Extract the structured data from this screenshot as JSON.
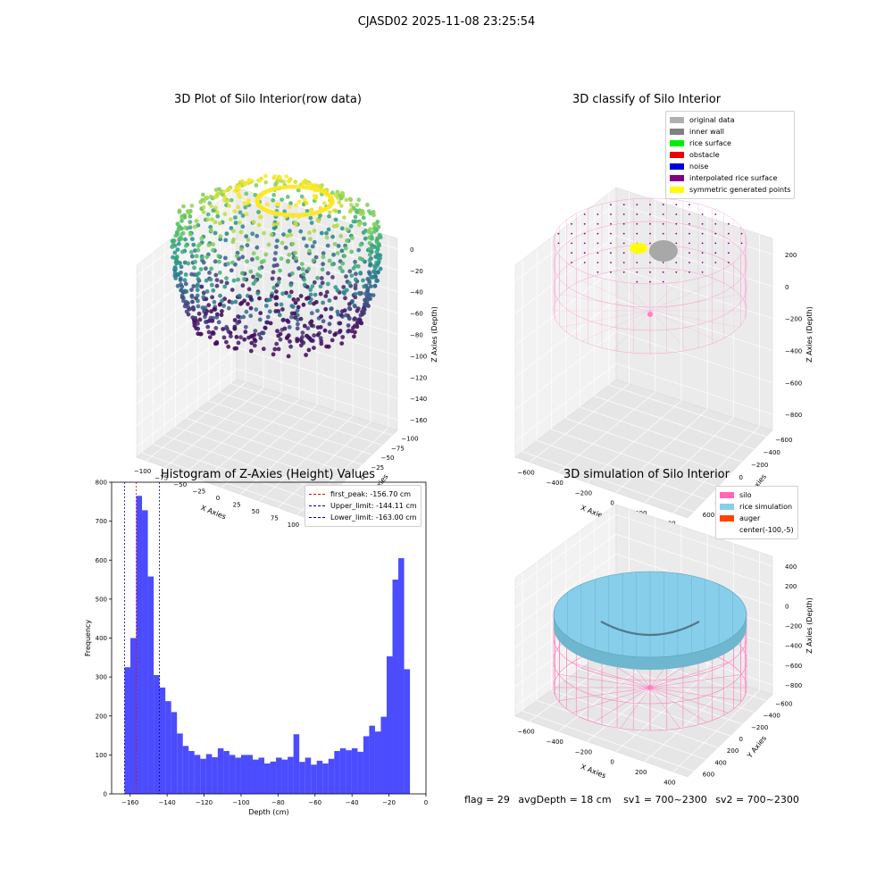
{
  "suptitle": "CJASD02 2025-11-08 23:25:54",
  "panels": {
    "raw": {
      "title": "3D Plot of Silo Interior(row data)",
      "xlabel": "X Axies",
      "ylabel": "Y Axies",
      "zlabel": "Z Axies (Depth)",
      "xticks": [
        "−100",
        "−75",
        "−50",
        "−25",
        "0",
        "25",
        "50",
        "75",
        "100"
      ],
      "yticks": [
        "100",
        "75",
        "50",
        "25",
        "0",
        "−25",
        "−50",
        "−75",
        "−100"
      ],
      "zticks": [
        "0",
        "−20",
        "−40",
        "−60",
        "−80",
        "−100",
        "−120",
        "−140",
        "−160"
      ]
    },
    "classify": {
      "title": "3D classify of Silo Interior",
      "xlabel": "X Axies",
      "ylabel": "Y Axies",
      "zlabel": "Z Axies (Depth)",
      "xticks": [
        "−600",
        "−400",
        "−200",
        "0",
        "200",
        "400"
      ],
      "yticks": [
        "600",
        "400",
        "200",
        "0",
        "−200",
        "−400",
        "−600"
      ],
      "zticks": [
        "200",
        "0",
        "−200",
        "−400",
        "−600",
        "−800"
      ],
      "legend": [
        {
          "label": "original data",
          "color": "#b0b0b0"
        },
        {
          "label": "inner wall",
          "color": "#808080"
        },
        {
          "label": "rice surface",
          "color": "#00ee00"
        },
        {
          "label": "obstacle",
          "color": "#ee0000"
        },
        {
          "label": "noise",
          "color": "#0000dd"
        },
        {
          "label": "interpolated rice surface",
          "color": "#800080"
        },
        {
          "label": "symmetric generated points",
          "color": "#ffff00"
        }
      ]
    },
    "simulation": {
      "title": "3D simulation of Silo Interior",
      "xlabel": "X Axies",
      "ylabel": "Y Axies",
      "zlabel": "Z Axies (Depth)",
      "xticks": [
        "−600",
        "−400",
        "−200",
        "0",
        "200",
        "400"
      ],
      "yticks": [
        "600",
        "400",
        "200",
        "0",
        "−200",
        "−400",
        "−600"
      ],
      "zticks": [
        "400",
        "200",
        "0",
        "−200",
        "−400",
        "−600",
        "−800"
      ],
      "legend": [
        {
          "label": "silo",
          "color": "#ff69b4"
        },
        {
          "label": "rice simulation",
          "color": "#87ceeb"
        },
        {
          "label": "auger",
          "color": "#ff4500"
        },
        {
          "label": "center(-100,-5)",
          "color": ""
        }
      ]
    }
  },
  "chart_data": {
    "type": "bar",
    "title": "Histogram of Z-Axies (Height) Values",
    "xlabel": "Depth (cm)",
    "ylabel": "Frequency",
    "xlim": [
      -170,
      0
    ],
    "ylim": [
      0,
      800
    ],
    "xticks": [
      "−160",
      "−140",
      "−120",
      "−100",
      "−80",
      "−60",
      "−40",
      "−20",
      "0"
    ],
    "yticks": [
      "0",
      "100",
      "200",
      "300",
      "400",
      "500",
      "600",
      "700",
      "800"
    ],
    "bin_start": -163.0,
    "bin_width": 3.15,
    "values": [
      325,
      400,
      765,
      728,
      558,
      305,
      273,
      238,
      210,
      155,
      123,
      110,
      100,
      90,
      102,
      94,
      117,
      110,
      100,
      93,
      100,
      100,
      88,
      93,
      78,
      83,
      93,
      88,
      95,
      153,
      82,
      93,
      75,
      85,
      78,
      90,
      110,
      117,
      112,
      117,
      108,
      148,
      175,
      160,
      198,
      353,
      550,
      605,
      320
    ],
    "bar_color": "#0000ff",
    "vlines": [
      {
        "label": "first_peak: -156.70 cm",
        "x": -156.7,
        "color": "#ff0000"
      },
      {
        "label": "Upper_limit: -144.11 cm",
        "x": -144.11,
        "color": "#0000aa"
      },
      {
        "label": "Lower_limit: -163.00 cm",
        "x": -163.0,
        "color": "#0000aa"
      }
    ]
  },
  "status": {
    "flag": "flag = 29",
    "avg": "avgDepth = 18 cm",
    "sv1": "sv1 = 700~2300",
    "sv2": "sv2 = 700~2300"
  }
}
